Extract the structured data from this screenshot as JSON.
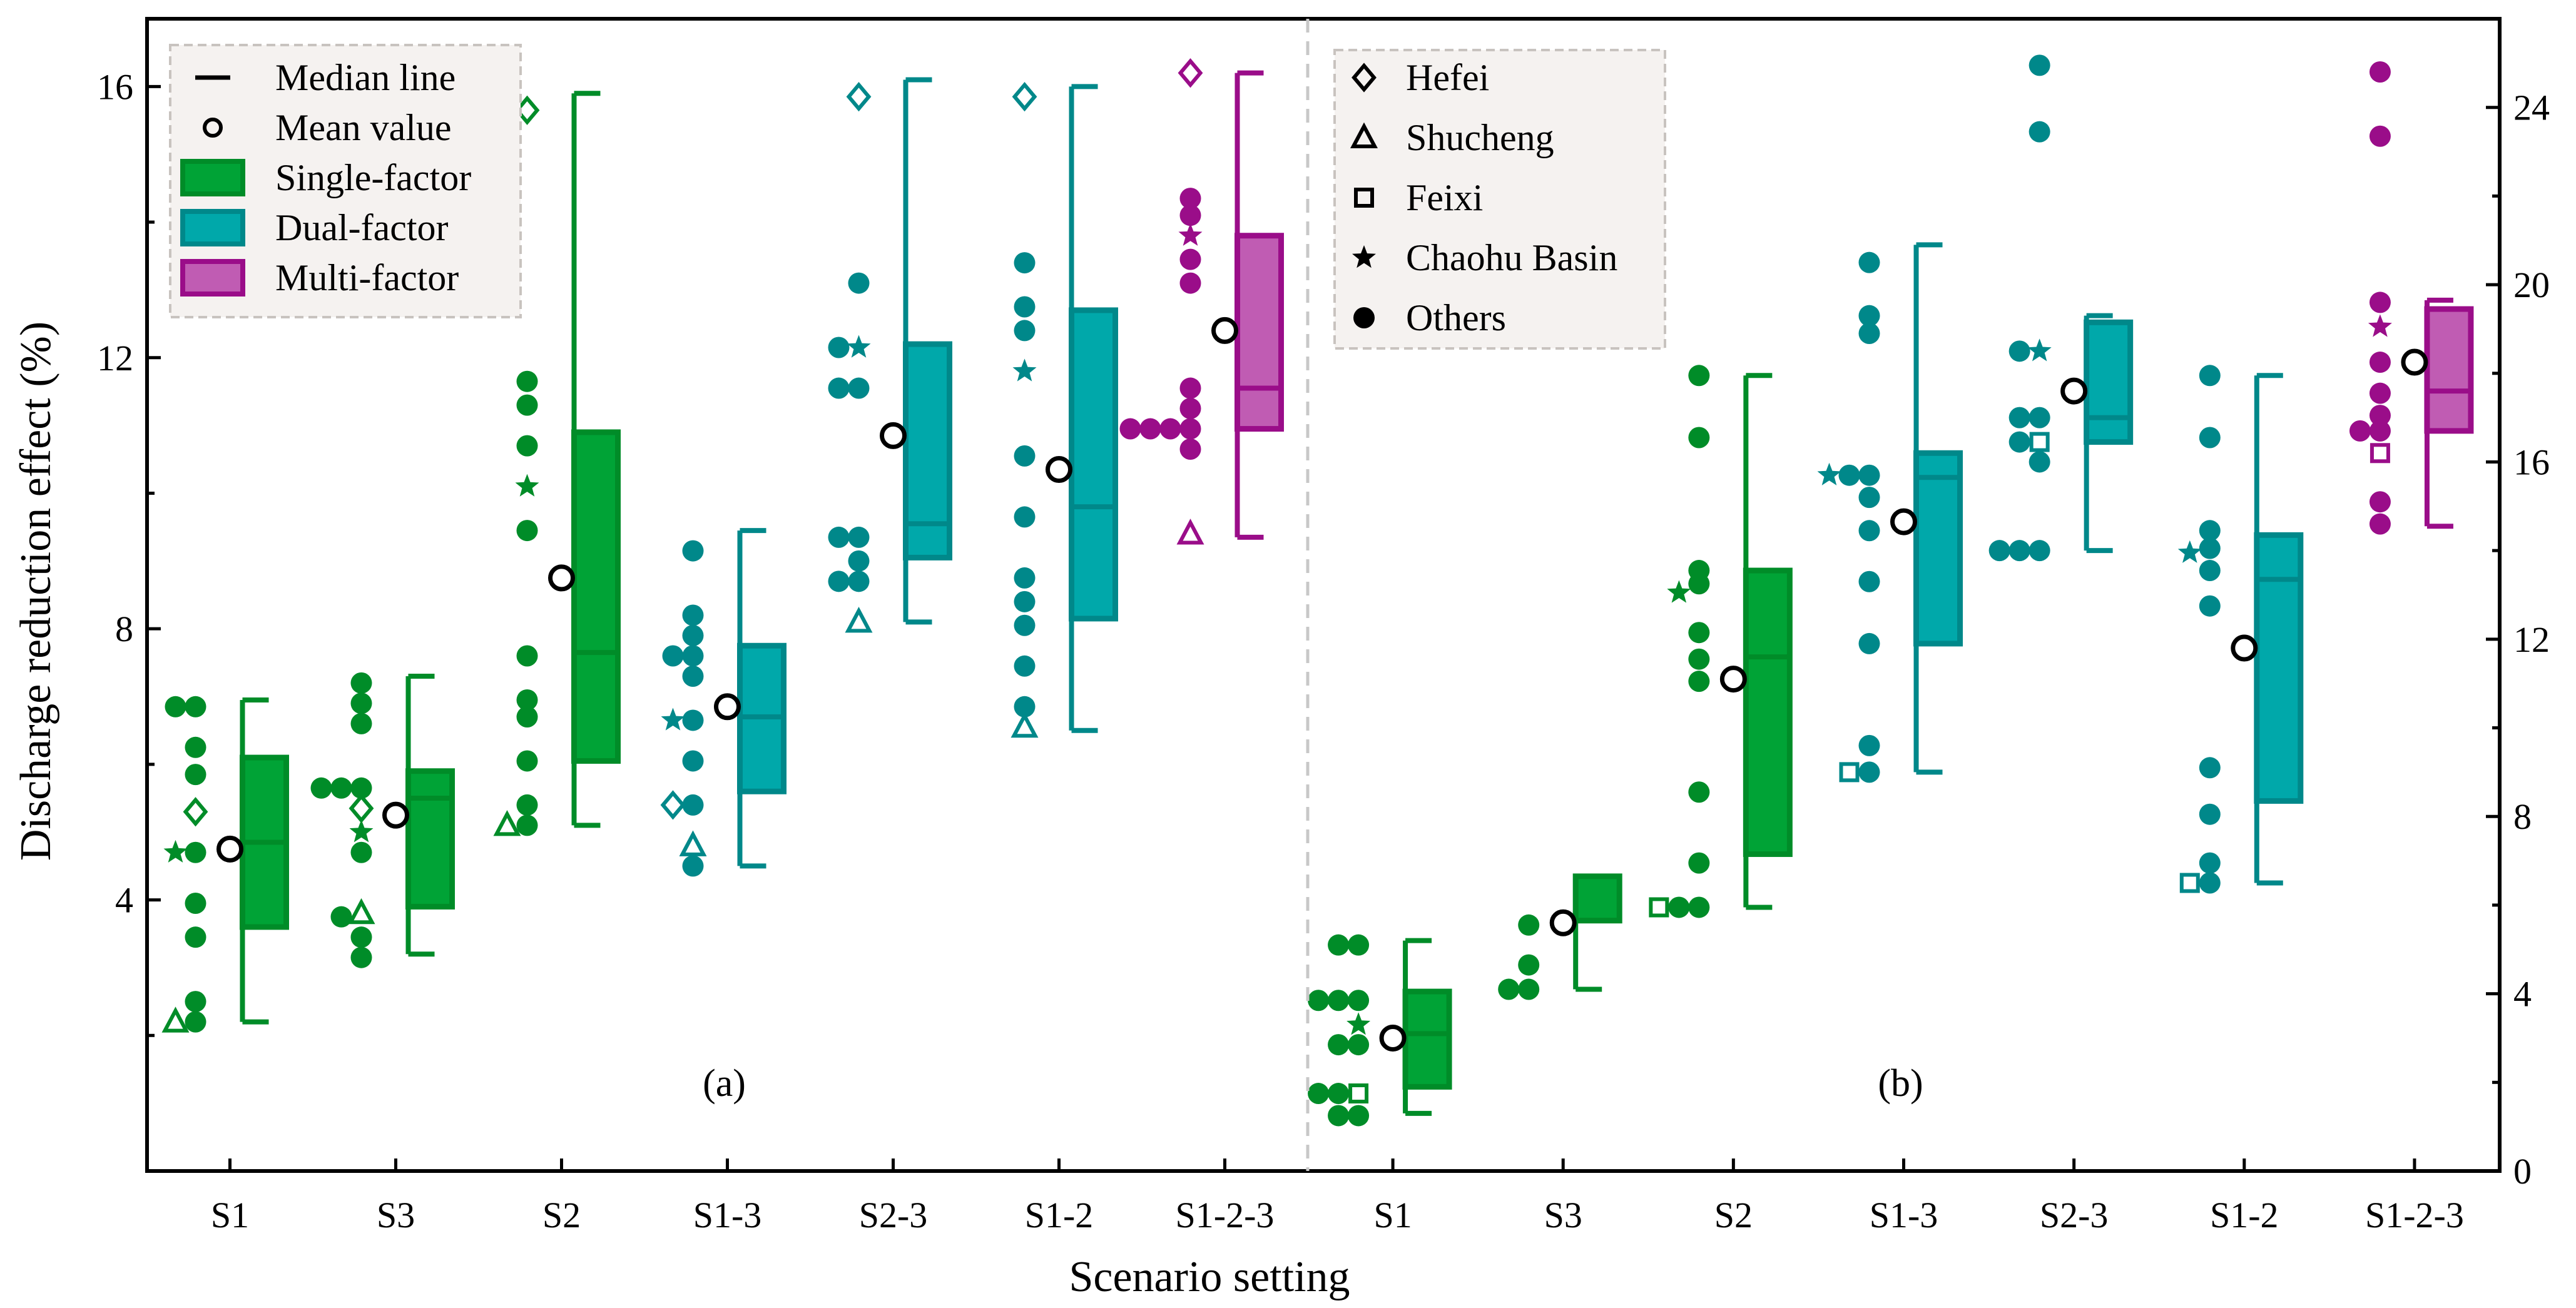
{
  "colors": {
    "single": "#008c28",
    "single_fill": "#00a336",
    "dual": "#00888a",
    "dual_fill": "#00a8aa",
    "multi": "#9a0d89",
    "multi_fill": "#c05cb3",
    "legend_bg": "#f5f2f0",
    "divider": "#c8c8c8"
  },
  "chart_data": {
    "type": "box",
    "xlabel": "Scenario setting",
    "ylabel": "Discharge reduction effect (%)",
    "categories": [
      "S1",
      "S3",
      "S2",
      "S1-3",
      "S2-3",
      "S1-2",
      "S1-2-3"
    ],
    "grid": false,
    "legend_position": "top-left (a), top-left of panel b (sites)",
    "legend_groups": {
      "stat_items": [
        {
          "label": "Median line",
          "symbol": "line"
        },
        {
          "label": "Mean value",
          "symbol": "circle"
        }
      ],
      "group_items": [
        {
          "label": "Single-factor",
          "group": "single"
        },
        {
          "label": "Dual-factor",
          "group": "dual"
        },
        {
          "label": "Multi-factor",
          "group": "multi"
        }
      ],
      "site_items": [
        {
          "label": "Hefei",
          "symbol": "diamond"
        },
        {
          "label": "Shucheng",
          "symbol": "triangle"
        },
        {
          "label": "Feixi",
          "symbol": "square"
        },
        {
          "label": "Chaohu Basin",
          "symbol": "star"
        },
        {
          "label": "Others",
          "symbol": "dot"
        }
      ]
    },
    "panels": [
      {
        "label": "(a)",
        "axis": "left",
        "ylim": [
          0,
          17
        ],
        "yticks": [
          4,
          8,
          12,
          16
        ],
        "boxes": [
          {
            "category": "S1",
            "group": "single",
            "q1": 3.6,
            "median": 4.85,
            "q3": 6.1,
            "whisker_low": 2.2,
            "whisker_high": 6.95,
            "mean": 4.75,
            "points": [
              [
                6.85,
                "dot"
              ],
              [
                6.85,
                "dot"
              ],
              [
                6.25,
                "dot"
              ],
              [
                5.85,
                "dot"
              ],
              [
                5.3,
                "diamond"
              ],
              [
                4.7,
                "dot"
              ],
              [
                4.7,
                "star"
              ],
              [
                3.95,
                "dot"
              ],
              [
                3.45,
                "dot"
              ],
              [
                2.5,
                "dot"
              ],
              [
                2.2,
                "dot"
              ],
              [
                2.2,
                "triangle"
              ]
            ]
          },
          {
            "category": "S3",
            "group": "single",
            "q1": 3.9,
            "median": 5.5,
            "q3": 5.9,
            "whisker_low": 3.2,
            "whisker_high": 7.3,
            "mean": 5.25,
            "points": [
              [
                7.2,
                "dot"
              ],
              [
                6.9,
                "dot"
              ],
              [
                6.6,
                "dot"
              ],
              [
                5.65,
                "dot"
              ],
              [
                5.65,
                "dot"
              ],
              [
                5.65,
                "dot"
              ],
              [
                5.35,
                "diamond"
              ],
              [
                5.0,
                "star"
              ],
              [
                4.7,
                "dot"
              ],
              [
                3.8,
                "triangle"
              ],
              [
                3.75,
                "dot"
              ],
              [
                3.45,
                "dot"
              ],
              [
                3.15,
                "dot"
              ]
            ]
          },
          {
            "category": "S2",
            "group": "single",
            "q1": 6.05,
            "median": 7.65,
            "q3": 10.9,
            "whisker_low": 5.1,
            "whisker_high": 15.9,
            "mean": 8.75,
            "points": [
              [
                15.65,
                "diamond"
              ],
              [
                11.65,
                "dot"
              ],
              [
                11.3,
                "dot"
              ],
              [
                10.7,
                "dot"
              ],
              [
                10.1,
                "star"
              ],
              [
                9.45,
                "dot"
              ],
              [
                7.6,
                "dot"
              ],
              [
                6.95,
                "dot"
              ],
              [
                6.7,
                "dot"
              ],
              [
                6.05,
                "dot"
              ],
              [
                5.4,
                "dot"
              ],
              [
                5.1,
                "dot"
              ],
              [
                5.1,
                "triangle"
              ]
            ]
          },
          {
            "category": "S1-3",
            "group": "dual",
            "q1": 5.6,
            "median": 6.7,
            "q3": 7.75,
            "whisker_low": 4.5,
            "whisker_high": 9.45,
            "mean": 6.85,
            "points": [
              [
                9.15,
                "dot"
              ],
              [
                8.2,
                "dot"
              ],
              [
                7.9,
                "dot"
              ],
              [
                7.6,
                "dot"
              ],
              [
                7.6,
                "dot"
              ],
              [
                7.3,
                "dot"
              ],
              [
                6.65,
                "dot"
              ],
              [
                6.65,
                "star"
              ],
              [
                6.05,
                "dot"
              ],
              [
                5.4,
                "dot"
              ],
              [
                5.4,
                "diamond"
              ],
              [
                4.8,
                "triangle"
              ],
              [
                4.5,
                "dot"
              ]
            ]
          },
          {
            "category": "S2-3",
            "group": "dual",
            "q1": 9.05,
            "median": 9.55,
            "q3": 12.2,
            "whisker_low": 8.1,
            "whisker_high": 16.1,
            "mean": 10.85,
            "points": [
              [
                15.85,
                "diamond"
              ],
              [
                13.1,
                "dot"
              ],
              [
                12.15,
                "star"
              ],
              [
                12.15,
                "dot"
              ],
              [
                11.55,
                "dot"
              ],
              [
                11.55,
                "dot"
              ],
              [
                9.35,
                "dot"
              ],
              [
                9.35,
                "dot"
              ],
              [
                9.0,
                "dot"
              ],
              [
                8.7,
                "dot"
              ],
              [
                8.7,
                "dot"
              ],
              [
                8.1,
                "triangle"
              ]
            ]
          },
          {
            "category": "S1-2",
            "group": "dual",
            "q1": 8.15,
            "median": 9.8,
            "q3": 12.7,
            "whisker_low": 6.5,
            "whisker_high": 16.0,
            "mean": 10.35,
            "points": [
              [
                15.85,
                "diamond"
              ],
              [
                13.4,
                "dot"
              ],
              [
                12.75,
                "dot"
              ],
              [
                12.4,
                "dot"
              ],
              [
                11.8,
                "star"
              ],
              [
                10.55,
                "dot"
              ],
              [
                9.65,
                "dot"
              ],
              [
                8.75,
                "dot"
              ],
              [
                8.4,
                "dot"
              ],
              [
                8.05,
                "dot"
              ],
              [
                7.45,
                "dot"
              ],
              [
                6.85,
                "dot"
              ],
              [
                6.55,
                "triangle"
              ]
            ]
          },
          {
            "category": "S1-2-3",
            "group": "multi",
            "q1": 10.95,
            "median": 11.55,
            "q3": 13.8,
            "whisker_low": 9.35,
            "whisker_high": 16.2,
            "mean": 12.4,
            "points": [
              [
                16.2,
                "diamond"
              ],
              [
                14.35,
                "dot"
              ],
              [
                14.1,
                "dot"
              ],
              [
                13.8,
                "star"
              ],
              [
                13.45,
                "dot"
              ],
              [
                13.1,
                "dot"
              ],
              [
                11.55,
                "dot"
              ],
              [
                11.25,
                "dot"
              ],
              [
                10.95,
                "dot"
              ],
              [
                10.95,
                "dot"
              ],
              [
                10.95,
                "dot"
              ],
              [
                10.95,
                "dot"
              ],
              [
                10.65,
                "dot"
              ],
              [
                9.4,
                "triangle"
              ]
            ]
          }
        ]
      },
      {
        "label": "(b)",
        "axis": "right",
        "ylim": [
          0,
          26
        ],
        "yticks": [
          0,
          4,
          8,
          12,
          16,
          20,
          24
        ],
        "boxes": [
          {
            "category": "S1",
            "group": "single",
            "q1": 1.9,
            "median": 3.1,
            "q3": 4.05,
            "whisker_low": 1.3,
            "whisker_high": 5.2,
            "mean": 3.0,
            "points": [
              [
                5.1,
                "dot"
              ],
              [
                5.1,
                "dot"
              ],
              [
                3.85,
                "dot"
              ],
              [
                3.85,
                "dot"
              ],
              [
                3.85,
                "dot"
              ],
              [
                3.3,
                "star"
              ],
              [
                2.85,
                "dot"
              ],
              [
                2.85,
                "dot"
              ],
              [
                1.75,
                "square"
              ],
              [
                1.75,
                "dot"
              ],
              [
                1.75,
                "dot"
              ],
              [
                1.25,
                "dot"
              ],
              [
                1.25,
                "dot"
              ]
            ]
          },
          {
            "category": "S3",
            "group": "single",
            "q1": 5.65,
            "median": 5.65,
            "q3": 6.65,
            "whisker_low": 4.1,
            "whisker_high": 6.65,
            "mean": 5.6,
            "points": [
              [
                5.55,
                "dot"
              ],
              [
                4.65,
                "dot"
              ],
              [
                4.1,
                "dot"
              ],
              [
                4.1,
                "dot"
              ]
            ]
          },
          {
            "category": "S2",
            "group": "single",
            "q1": 7.15,
            "median": 11.6,
            "q3": 13.55,
            "whisker_low": 5.95,
            "whisker_high": 17.95,
            "mean": 11.1,
            "points": [
              [
                17.95,
                "dot"
              ],
              [
                16.55,
                "dot"
              ],
              [
                13.55,
                "dot"
              ],
              [
                13.25,
                "dot"
              ],
              [
                13.05,
                "star"
              ],
              [
                12.15,
                "dot"
              ],
              [
                11.55,
                "dot"
              ],
              [
                11.05,
                "dot"
              ],
              [
                8.55,
                "dot"
              ],
              [
                6.95,
                "dot"
              ],
              [
                5.95,
                "dot"
              ],
              [
                5.95,
                "dot"
              ],
              [
                5.95,
                "square"
              ]
            ]
          },
          {
            "category": "S1-3",
            "group": "dual",
            "q1": 11.9,
            "median": 15.65,
            "q3": 16.2,
            "whisker_low": 9.0,
            "whisker_high": 20.9,
            "mean": 14.65,
            "points": [
              [
                20.5,
                "dot"
              ],
              [
                19.3,
                "dot"
              ],
              [
                18.9,
                "dot"
              ],
              [
                15.7,
                "dot"
              ],
              [
                15.7,
                "dot"
              ],
              [
                15.7,
                "star"
              ],
              [
                15.2,
                "dot"
              ],
              [
                14.45,
                "dot"
              ],
              [
                13.3,
                "dot"
              ],
              [
                11.9,
                "dot"
              ],
              [
                9.6,
                "dot"
              ],
              [
                9.0,
                "dot"
              ],
              [
                9.0,
                "square"
              ]
            ]
          },
          {
            "category": "S2-3",
            "group": "dual",
            "q1": 16.45,
            "median": 17.0,
            "q3": 19.15,
            "whisker_low": 14.0,
            "whisker_high": 19.3,
            "mean": 17.6,
            "points": [
              [
                24.95,
                "dot"
              ],
              [
                23.45,
                "dot"
              ],
              [
                18.5,
                "star"
              ],
              [
                18.5,
                "dot"
              ],
              [
                17.0,
                "dot"
              ],
              [
                17.0,
                "dot"
              ],
              [
                16.45,
                "square"
              ],
              [
                16.45,
                "dot"
              ],
              [
                16.0,
                "dot"
              ],
              [
                14.0,
                "dot"
              ],
              [
                14.0,
                "dot"
              ],
              [
                14.0,
                "dot"
              ]
            ]
          },
          {
            "category": "S1-2",
            "group": "dual",
            "q1": 8.35,
            "median": 13.35,
            "q3": 14.35,
            "whisker_low": 6.5,
            "whisker_high": 17.95,
            "mean": 11.8,
            "points": [
              [
                17.95,
                "dot"
              ],
              [
                16.55,
                "dot"
              ],
              [
                14.45,
                "dot"
              ],
              [
                14.05,
                "dot"
              ],
              [
                13.95,
                "star"
              ],
              [
                13.55,
                "dot"
              ],
              [
                12.75,
                "dot"
              ],
              [
                9.1,
                "dot"
              ],
              [
                8.05,
                "dot"
              ],
              [
                6.95,
                "dot"
              ],
              [
                6.5,
                "dot"
              ],
              [
                6.5,
                "square"
              ]
            ]
          },
          {
            "category": "S1-2-3",
            "group": "multi",
            "q1": 16.7,
            "median": 17.6,
            "q3": 19.45,
            "whisker_low": 14.55,
            "whisker_high": 19.65,
            "mean": 18.25,
            "points": [
              [
                24.8,
                "dot"
              ],
              [
                23.35,
                "dot"
              ],
              [
                19.6,
                "dot"
              ],
              [
                19.05,
                "star"
              ],
              [
                18.25,
                "dot"
              ],
              [
                17.55,
                "dot"
              ],
              [
                17.05,
                "dot"
              ],
              [
                16.7,
                "dot"
              ],
              [
                16.7,
                "dot"
              ],
              [
                16.2,
                "square"
              ],
              [
                15.1,
                "dot"
              ],
              [
                14.6,
                "dot"
              ]
            ]
          }
        ]
      }
    ]
  }
}
